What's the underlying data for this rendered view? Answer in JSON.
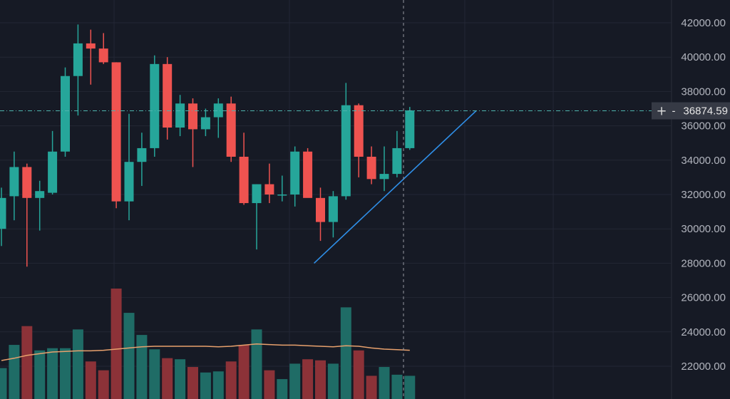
{
  "chart_data": {
    "type": "candlestick",
    "y_axis": {
      "position": "right",
      "min": 20000,
      "max": 43000,
      "ticks": [
        "42000.00",
        "40000.00",
        "38000.00",
        "36000.00",
        "34000.00",
        "32000.00",
        "30000.00",
        "28000.00",
        "26000.00",
        "24000.00",
        "22000.00"
      ]
    },
    "crosshair": {
      "price": 36874.59,
      "label": "36874.59",
      "plus": "+",
      "dash": "-"
    },
    "candles": [
      {
        "o": 30000,
        "h": 32400,
        "l": 29000,
        "c": 31800
      },
      {
        "o": 31900,
        "h": 34500,
        "l": 30500,
        "c": 33600
      },
      {
        "o": 33600,
        "h": 33800,
        "l": 27800,
        "c": 31800
      },
      {
        "o": 31800,
        "h": 32800,
        "l": 29900,
        "c": 32200
      },
      {
        "o": 32100,
        "h": 35700,
        "l": 32000,
        "c": 34500
      },
      {
        "o": 34500,
        "h": 39400,
        "l": 34200,
        "c": 38900
      },
      {
        "o": 38900,
        "h": 41900,
        "l": 36600,
        "c": 40800
      },
      {
        "o": 40800,
        "h": 41600,
        "l": 38400,
        "c": 40500
      },
      {
        "o": 40500,
        "h": 41400,
        "l": 39600,
        "c": 39700
      },
      {
        "o": 39700,
        "h": 39700,
        "l": 31200,
        "c": 31600
      },
      {
        "o": 31600,
        "h": 36700,
        "l": 30500,
        "c": 33900
      },
      {
        "o": 33900,
        "h": 35600,
        "l": 32500,
        "c": 34700
      },
      {
        "o": 34700,
        "h": 40100,
        "l": 34200,
        "c": 39600
      },
      {
        "o": 39600,
        "h": 40000,
        "l": 35200,
        "c": 35900
      },
      {
        "o": 35900,
        "h": 37800,
        "l": 35400,
        "c": 37300
      },
      {
        "o": 37300,
        "h": 37600,
        "l": 33600,
        "c": 35800
      },
      {
        "o": 35800,
        "h": 37000,
        "l": 35400,
        "c": 36500
      },
      {
        "o": 36500,
        "h": 37600,
        "l": 35300,
        "c": 37300
      },
      {
        "o": 37300,
        "h": 37700,
        "l": 33900,
        "c": 34200
      },
      {
        "o": 34200,
        "h": 35600,
        "l": 31400,
        "c": 31500
      },
      {
        "o": 31500,
        "h": 32600,
        "l": 28800,
        "c": 32600
      },
      {
        "o": 32600,
        "h": 33800,
        "l": 31500,
        "c": 32000
      },
      {
        "o": 32000,
        "h": 33100,
        "l": 31600,
        "c": 32000
      },
      {
        "o": 32000,
        "h": 34800,
        "l": 31300,
        "c": 34500
      },
      {
        "o": 34500,
        "h": 34700,
        "l": 31900,
        "c": 31800
      },
      {
        "o": 31800,
        "h": 32400,
        "l": 29300,
        "c": 30400
      },
      {
        "o": 30400,
        "h": 32200,
        "l": 29500,
        "c": 31900
      },
      {
        "o": 31900,
        "h": 38500,
        "l": 31700,
        "c": 37200
      },
      {
        "o": 37200,
        "h": 37300,
        "l": 33000,
        "c": 34200
      },
      {
        "o": 34200,
        "h": 34800,
        "l": 32600,
        "c": 32900
      },
      {
        "o": 32900,
        "h": 34800,
        "l": 32200,
        "c": 33200
      },
      {
        "o": 33200,
        "h": 35700,
        "l": 33000,
        "c": 34700
      },
      {
        "o": 34700,
        "h": 37100,
        "l": 34600,
        "c": 36900
      }
    ],
    "volume": [
      {
        "v": 0.28,
        "up": true
      },
      {
        "v": 0.49,
        "up": true
      },
      {
        "v": 0.66,
        "up": false
      },
      {
        "v": 0.44,
        "up": true
      },
      {
        "v": 0.46,
        "up": true
      },
      {
        "v": 0.46,
        "up": true
      },
      {
        "v": 0.63,
        "up": true
      },
      {
        "v": 0.34,
        "up": false
      },
      {
        "v": 0.26,
        "up": false
      },
      {
        "v": 1.0,
        "up": false
      },
      {
        "v": 0.78,
        "up": true
      },
      {
        "v": 0.58,
        "up": true
      },
      {
        "v": 0.45,
        "up": true
      },
      {
        "v": 0.37,
        "up": false
      },
      {
        "v": 0.36,
        "up": true
      },
      {
        "v": 0.29,
        "up": false
      },
      {
        "v": 0.24,
        "up": true
      },
      {
        "v": 0.25,
        "up": true
      },
      {
        "v": 0.34,
        "up": false
      },
      {
        "v": 0.49,
        "up": false
      },
      {
        "v": 0.63,
        "up": true
      },
      {
        "v": 0.26,
        "up": false
      },
      {
        "v": 0.18,
        "up": true
      },
      {
        "v": 0.32,
        "up": true
      },
      {
        "v": 0.36,
        "up": false
      },
      {
        "v": 0.35,
        "up": false
      },
      {
        "v": 0.32,
        "up": true
      },
      {
        "v": 0.83,
        "up": true
      },
      {
        "v": 0.44,
        "up": false
      },
      {
        "v": 0.21,
        "up": false
      },
      {
        "v": 0.29,
        "up": true
      },
      {
        "v": 0.22,
        "up": true
      },
      {
        "v": 0.21,
        "up": true
      }
    ],
    "volume_ma": [
      0.05,
      0.09,
      0.14,
      0.17,
      0.2,
      0.21,
      0.22,
      0.22,
      0.23,
      0.25,
      0.27,
      0.29,
      0.3,
      0.3,
      0.3,
      0.3,
      0.3,
      0.29,
      0.3,
      0.32,
      0.34,
      0.33,
      0.32,
      0.32,
      0.31,
      0.3,
      0.29,
      0.31,
      0.3,
      0.27,
      0.25,
      0.24,
      0.23
    ],
    "trendline": [
      {
        "i": 24.5,
        "price": 28000
      },
      {
        "i": 37.2,
        "price": 36874.59
      }
    ],
    "colors": {
      "background": "#161a25",
      "grid": "#232735",
      "up": "#26a69a",
      "down": "#ef5350",
      "volume_up": "#1f6c66",
      "volume_down": "#8c3238",
      "volume_ma": "#e8a16d",
      "trendline": "#2f8fe8",
      "crosshair": "#4fb3ae",
      "text": "#b2b5be"
    }
  }
}
